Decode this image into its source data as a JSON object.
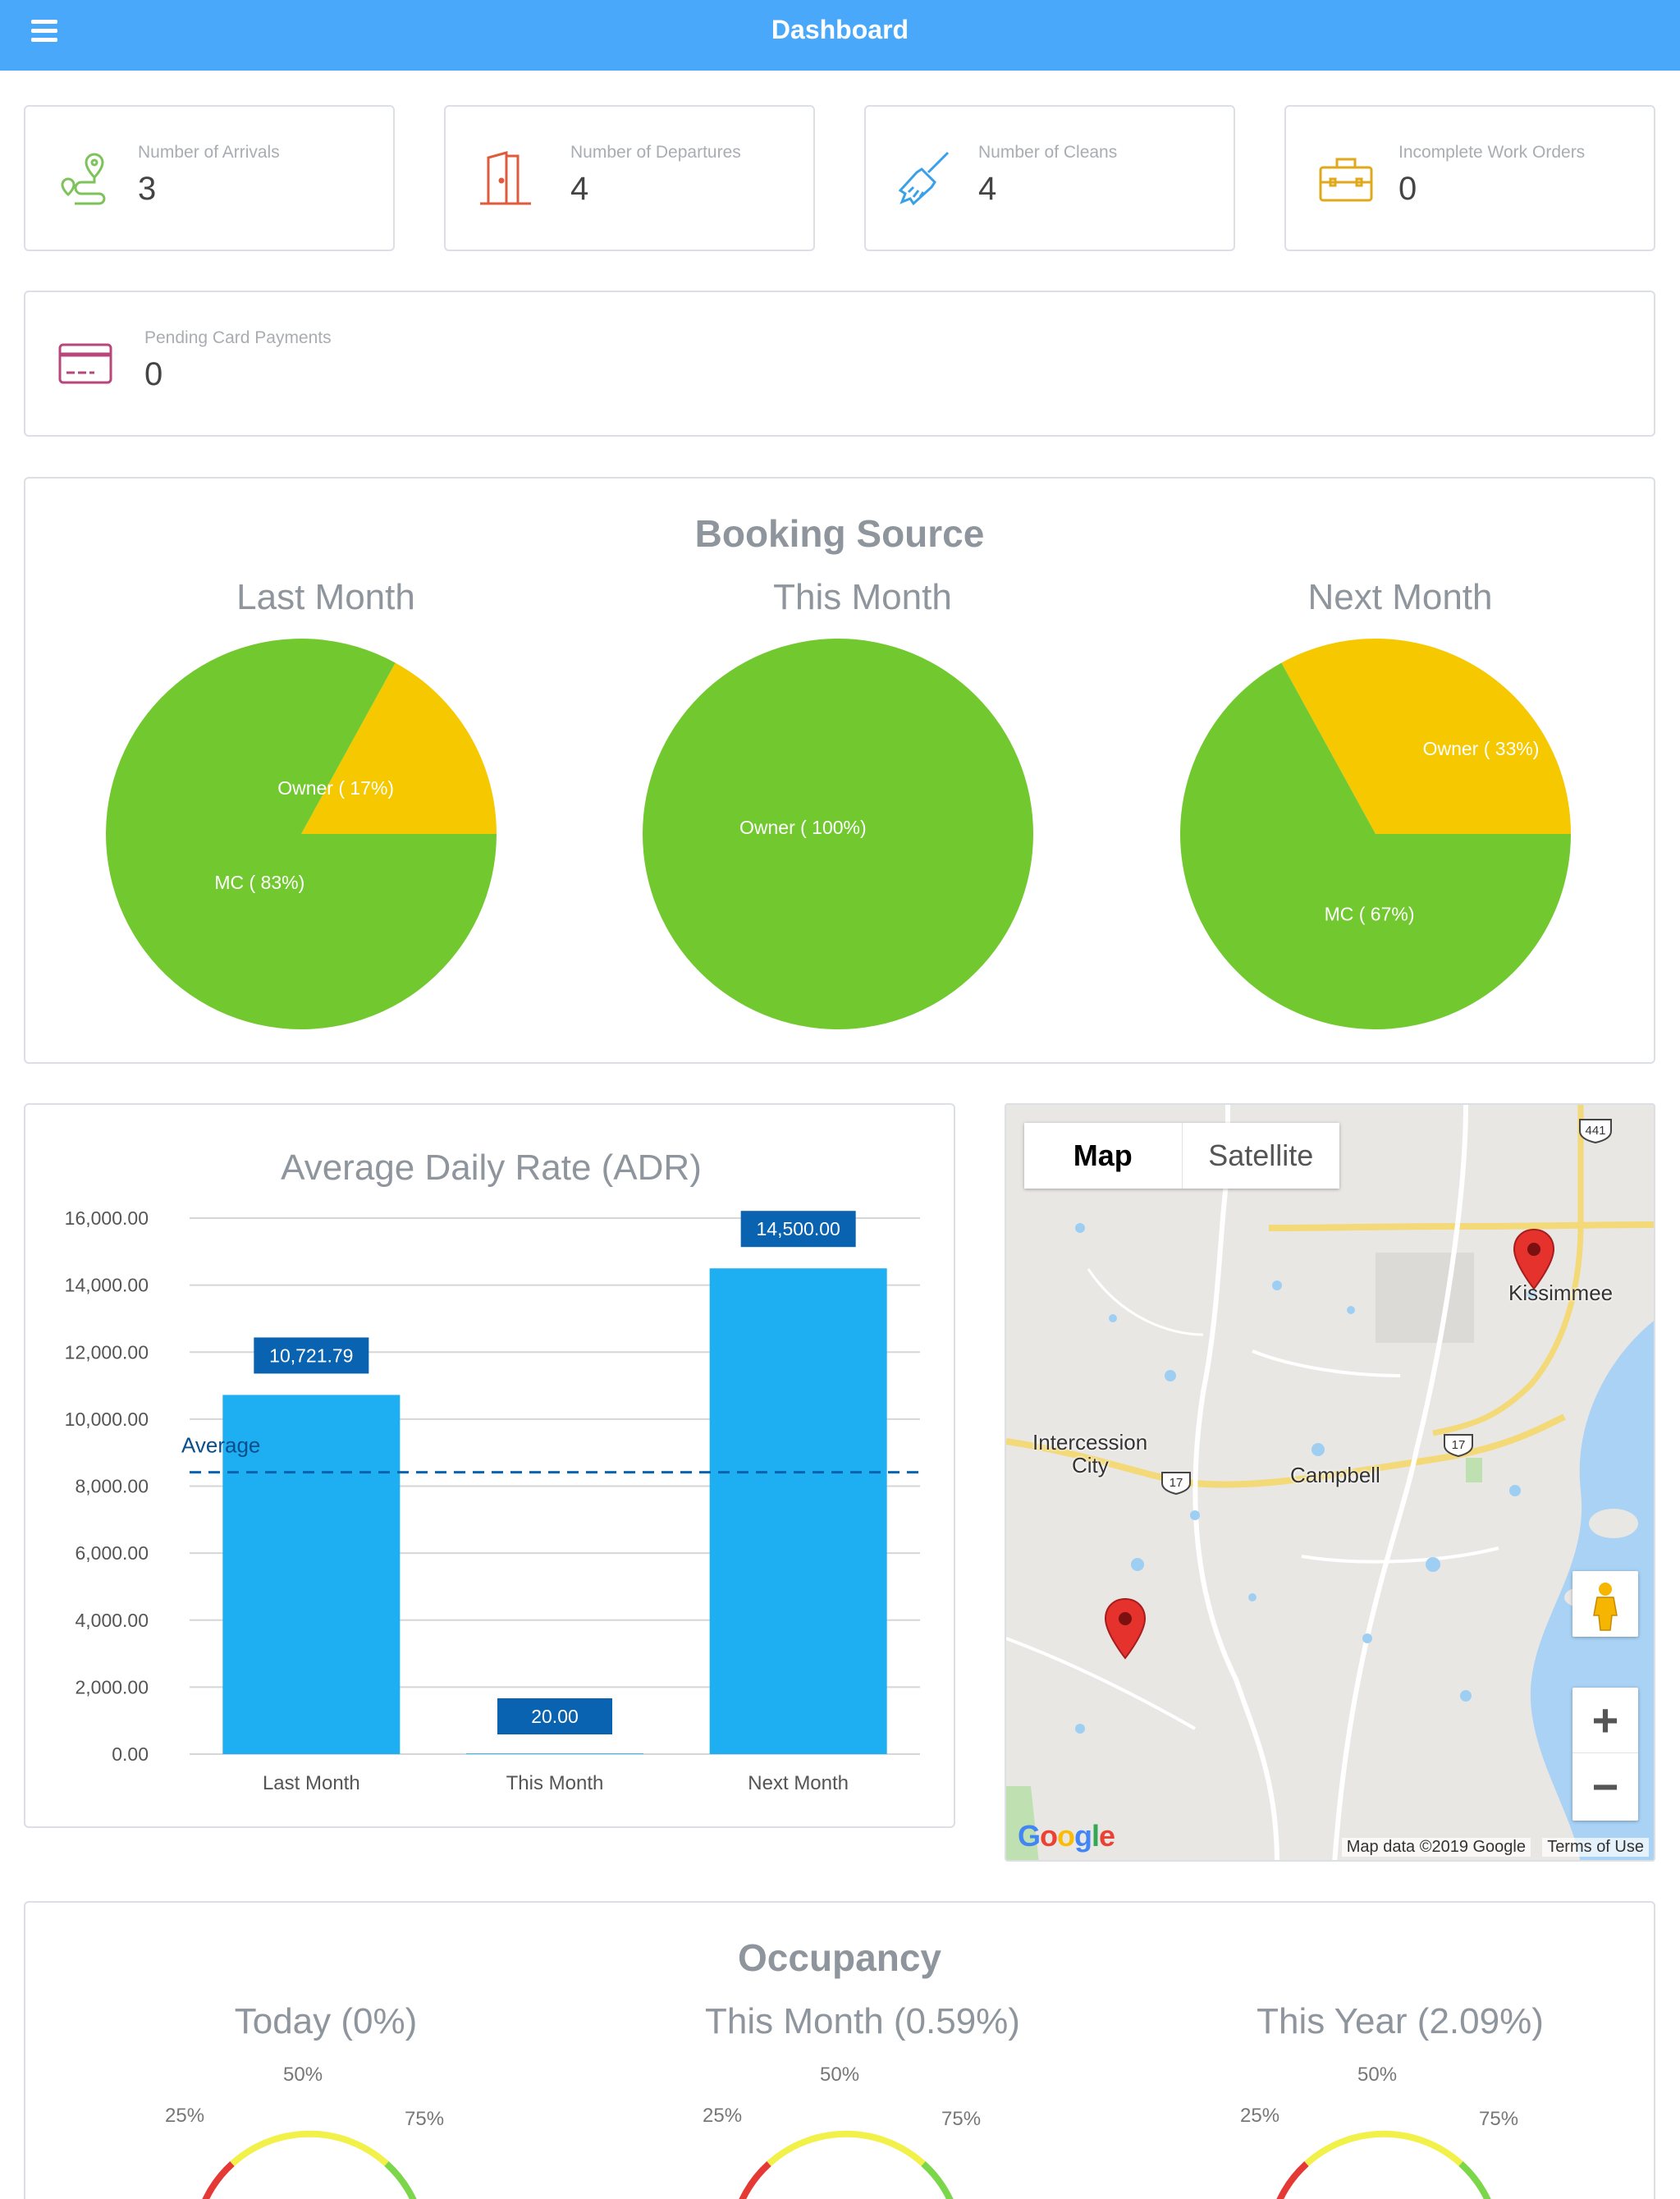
{
  "header": {
    "title": "Dashboard",
    "menu_icon": "hamburger-menu-icon"
  },
  "stats": [
    {
      "icon": "route-icon",
      "label": "Number of Arrivals",
      "value": "3",
      "color": "#7cc35a"
    },
    {
      "icon": "door-icon",
      "label": "Number of Departures",
      "value": "4",
      "color": "#e05a3c"
    },
    {
      "icon": "broom-icon",
      "label": "Number of Cleans",
      "value": "4",
      "color": "#3aa0e8"
    },
    {
      "icon": "toolbox-icon",
      "label": "Incomplete Work Orders",
      "value": "0",
      "color": "#e0a81c"
    },
    {
      "icon": "credit-card-icon",
      "label": "Pending Card Payments",
      "value": "0",
      "color": "#b8467a"
    }
  ],
  "booking_source": {
    "title": "Booking Source",
    "charts": [
      {
        "title": "Last Month"
      },
      {
        "title": "This Month"
      },
      {
        "title": "Next Month"
      }
    ]
  },
  "adr": {
    "title": "Average Daily Rate (ADR)",
    "average_label": "Average"
  },
  "map": {
    "map_tab": "Map",
    "satellite_tab": "Satellite",
    "places": [
      "Kissimmee",
      "Intercession",
      "City",
      "Campbell"
    ],
    "road_shields": [
      "441",
      "17",
      "17"
    ],
    "logo": "Google",
    "attribution": "Map data ©2019 Google",
    "terms": "Terms of Use",
    "zoom_in": "+",
    "zoom_out": "−",
    "pegman_icon": "pegman-icon"
  },
  "occupancy": {
    "title": "Occupancy",
    "gauges": [
      {
        "title": "Today (0%)",
        "value_percent": 0
      },
      {
        "title": "This Month (0.59%)",
        "value_percent": 0.59
      },
      {
        "title": "This Year (2.09%)",
        "value_percent": 2.09
      }
    ],
    "tick_labels": [
      "25%",
      "50%",
      "75%"
    ]
  },
  "colors": {
    "green": "#71c92f",
    "yellow": "#f5c800",
    "bar": "#1eaff2",
    "label_bg": "#0a63b0",
    "header": "#4aa8fb"
  },
  "chart_data": [
    {
      "type": "pie",
      "title": "Last Month",
      "slices": [
        {
          "label": "Owner ( 17%)",
          "value": 17,
          "color": "#f5c800"
        },
        {
          "label": "MC ( 83%)",
          "value": 83,
          "color": "#71c92f"
        }
      ]
    },
    {
      "type": "pie",
      "title": "This Month",
      "slices": [
        {
          "label": "Owner ( 100%)",
          "value": 100,
          "color": "#71c92f"
        }
      ]
    },
    {
      "type": "pie",
      "title": "Next Month",
      "slices": [
        {
          "label": "Owner ( 33%)",
          "value": 33,
          "color": "#f5c800"
        },
        {
          "label": "MC ( 67%)",
          "value": 67,
          "color": "#71c92f"
        }
      ]
    },
    {
      "type": "bar",
      "title": "Average Daily Rate (ADR)",
      "categories": [
        "Last Month",
        "This Month",
        "Next Month"
      ],
      "values": [
        10721.79,
        20.0,
        14500.0
      ],
      "value_labels": [
        "10,721.79",
        "20.00",
        "14,500.00"
      ],
      "average": 8413.93,
      "average_label": "Average",
      "ylim": [
        0,
        16000
      ],
      "yticks": [
        0,
        2000,
        4000,
        6000,
        8000,
        10000,
        12000,
        14000,
        16000
      ],
      "ytick_labels": [
        "0.00",
        "2,000.00",
        "4,000.00",
        "6,000.00",
        "8,000.00",
        "10,000.00",
        "12,000.00",
        "14,000.00",
        "16,000.00"
      ],
      "grid": true
    }
  ]
}
